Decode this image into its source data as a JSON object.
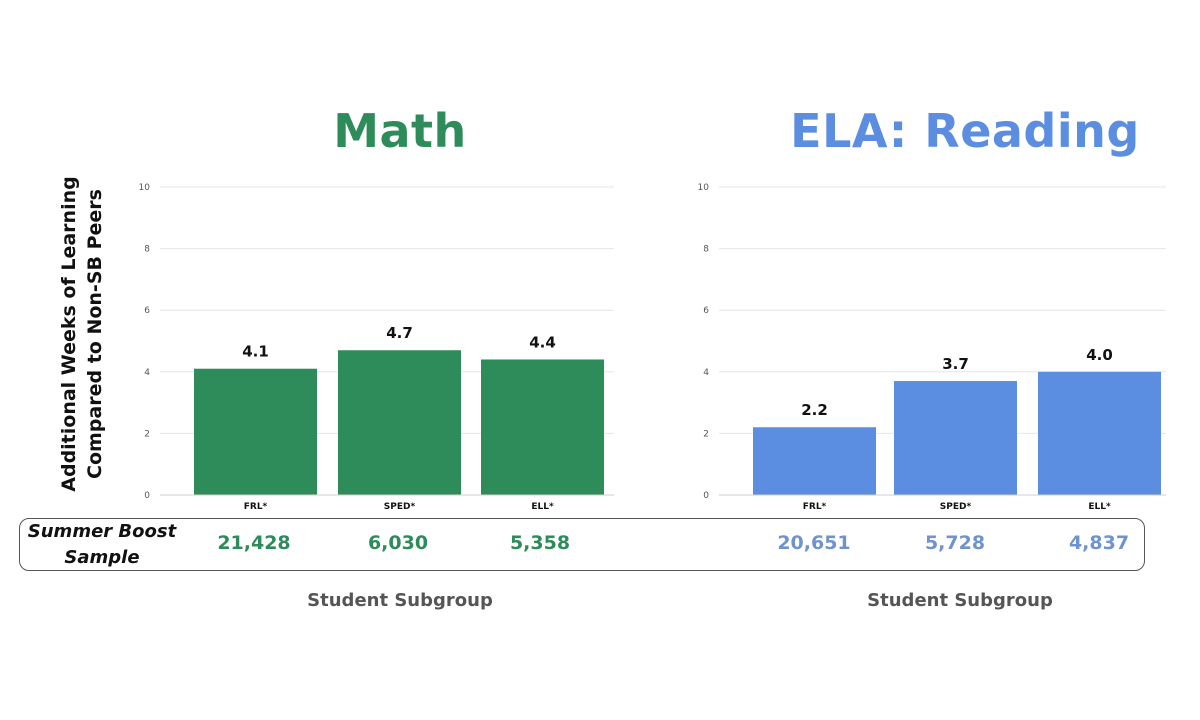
{
  "chart_data": [
    {
      "type": "bar",
      "title": "Math",
      "title_color": "#2e8b5a",
      "bar_color": "#2e8b5a",
      "categories": [
        "FRL*",
        "SPED*",
        "ELL*"
      ],
      "values": [
        4.1,
        4.7,
        4.4
      ],
      "value_labels": [
        "4.1",
        "4.7",
        "4.4"
      ],
      "ylabel": [
        "Additional Weeks of Learning",
        "Compared to Non-SB Peers"
      ],
      "xlabel": "Student Subgroup",
      "ylim": [
        0,
        10
      ],
      "yticks": [
        "0",
        "2",
        "4",
        "6",
        "8",
        "10"
      ],
      "grid": true,
      "samples": [
        "21,428",
        "6,030",
        "5,358"
      ]
    },
    {
      "type": "bar",
      "title": "ELA: Reading",
      "title_color": "#5b8de0",
      "bar_color": "#5b8de0",
      "sample_color": "#6f93cc",
      "categories": [
        "FRL*",
        "SPED*",
        "ELL*"
      ],
      "values": [
        2.2,
        3.7,
        4.0
      ],
      "value_labels": [
        "2.2",
        "3.7",
        "4.0"
      ],
      "xlabel": "Student Subgroup",
      "ylim": [
        0,
        10
      ],
      "yticks": [
        "0",
        "2",
        "4",
        "6",
        "8",
        "10"
      ],
      "grid": true,
      "samples": [
        "20,651",
        "5,728",
        "4,837"
      ]
    }
  ],
  "sample_row": {
    "label_line1": "Summer Boost",
    "label_line2": "Sample"
  }
}
